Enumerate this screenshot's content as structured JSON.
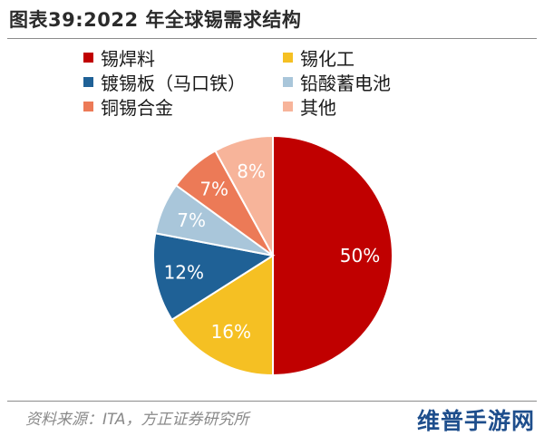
{
  "chart_data": {
    "type": "pie",
    "title": "图表39:2022 年全球锡需求结构",
    "categories": [
      "锡焊料",
      "锡化工",
      "镀锡板（马口铁）",
      "铅酸蓄电池",
      "铜锡合金",
      "其他"
    ],
    "values": [
      50,
      16,
      12,
      7,
      7,
      8
    ],
    "data_labels": [
      "50%",
      "16%",
      "12%",
      "7%",
      "7%",
      "8%"
    ],
    "colors": [
      "#C00000",
      "#F5C023",
      "#1F6196",
      "#A9C6DA",
      "#EC7A57",
      "#F7B49A"
    ],
    "legend": [
      {
        "label": "锡焊料",
        "color": "#C00000"
      },
      {
        "label": "锡化工",
        "color": "#F5C023"
      },
      {
        "label": "镀锡板（马口铁）",
        "color": "#1F6196"
      },
      {
        "label": "铅酸蓄电池",
        "color": "#A9C6DA"
      },
      {
        "label": "铜锡合金",
        "color": "#EC7A57"
      },
      {
        "label": "其他",
        "color": "#F7B49A"
      }
    ],
    "legend_position": "top",
    "start_angle": "12 o'clock",
    "direction": "clockwise"
  },
  "source": "资料来源：ITA，方正证券研究所",
  "watermark": "维普手游网"
}
